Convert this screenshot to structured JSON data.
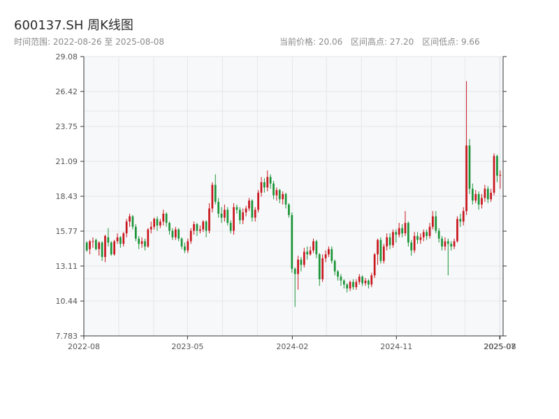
{
  "header": {
    "title": "600137.SH 周K线图",
    "range_label": "时间范围: 2022-08-26 至 2025-08-08",
    "current_price_label": "当前价格: 20.06",
    "high_label": "区间高点: 27.20",
    "low_label": "区间低点: 9.66"
  },
  "colors": {
    "up": "#c8161d",
    "down": "#1a9436",
    "grid": "#e3e6ea",
    "plot_bg": "#f7f8fa",
    "axis": "#333333"
  },
  "chart_data": {
    "type": "candlestick",
    "title": "600137.SH 周K线图",
    "xlabel": "",
    "ylabel": "",
    "ylim": [
      7.783,
      29.08
    ],
    "y_ticks": [
      7.783,
      10.44,
      13.11,
      15.77,
      18.43,
      21.09,
      23.75,
      26.42,
      29.08
    ],
    "y_tick_labels": [
      "7.783",
      "10.44",
      "13.11",
      "15.77",
      "18.43",
      "21.09",
      "23.75",
      "26.42",
      "29.08"
    ],
    "x_range": [
      "2022-08-01",
      "2025-08-09"
    ],
    "x_ticks": [
      "2022-08-01",
      "2023-05-01",
      "2024-02-01",
      "2024-11-01",
      "2025-07-31",
      "2025-08-01"
    ],
    "x_tick_labels": [
      "2022-08",
      "2023-05",
      "2024-02",
      "2024-11",
      "2025-07",
      "2025-08"
    ],
    "grid": true,
    "series_ohlc": [
      [
        14.9,
        14.3,
        15.0,
        14.2
      ],
      [
        14.4,
        15.0,
        15.1,
        14.0
      ],
      [
        15.0,
        15.0,
        15.3,
        14.5
      ],
      [
        15.1,
        14.4,
        15.2,
        14.3
      ],
      [
        14.4,
        14.9,
        15.0,
        13.9
      ],
      [
        14.9,
        13.8,
        15.0,
        13.5
      ],
      [
        13.8,
        15.4,
        15.5,
        13.4
      ],
      [
        15.3,
        14.9,
        16.0,
        14.6
      ],
      [
        14.9,
        14.0,
        15.0,
        13.9
      ],
      [
        14.0,
        15.0,
        15.1,
        13.9
      ],
      [
        15.0,
        15.3,
        15.6,
        14.8
      ],
      [
        15.3,
        14.8,
        15.4,
        14.5
      ],
      [
        14.8,
        15.6,
        15.7,
        14.6
      ],
      [
        15.6,
        16.5,
        16.7,
        15.3
      ],
      [
        16.5,
        16.9,
        17.1,
        16.1
      ],
      [
        16.9,
        16.1,
        17.0,
        15.9
      ],
      [
        16.1,
        15.2,
        16.3,
        15.0
      ],
      [
        15.2,
        14.8,
        15.4,
        14.4
      ],
      [
        14.8,
        15.0,
        15.3,
        14.5
      ],
      [
        15.0,
        14.6,
        15.2,
        14.3
      ],
      [
        14.6,
        15.9,
        16.0,
        14.5
      ],
      [
        15.9,
        16.1,
        16.5,
        15.6
      ],
      [
        16.1,
        16.7,
        16.8,
        15.9
      ],
      [
        16.7,
        16.2,
        16.9,
        15.8
      ],
      [
        16.2,
        16.5,
        16.7,
        16.0
      ],
      [
        16.5,
        17.1,
        17.4,
        16.2
      ],
      [
        17.1,
        16.4,
        17.2,
        16.1
      ],
      [
        16.4,
        15.8,
        16.5,
        15.5
      ],
      [
        15.8,
        15.3,
        16.0,
        15.1
      ],
      [
        15.3,
        15.9,
        16.1,
        15.1
      ],
      [
        15.9,
        15.2,
        16.0,
        15.0
      ],
      [
        15.2,
        14.6,
        15.3,
        14.4
      ],
      [
        14.6,
        14.3,
        14.9,
        14.1
      ],
      [
        14.3,
        15.0,
        15.2,
        14.1
      ],
      [
        15.0,
        15.8,
        16.0,
        14.8
      ],
      [
        15.8,
        16.3,
        16.5,
        15.5
      ],
      [
        16.3,
        15.8,
        16.4,
        15.4
      ],
      [
        15.8,
        15.9,
        16.2,
        15.6
      ],
      [
        15.9,
        16.5,
        16.6,
        15.7
      ],
      [
        16.5,
        15.8,
        16.6,
        15.3
      ],
      [
        15.8,
        17.5,
        17.9,
        15.6
      ],
      [
        17.5,
        19.3,
        19.5,
        17.2
      ],
      [
        19.3,
        18.0,
        20.1,
        17.8
      ],
      [
        18.0,
        17.1,
        18.3,
        16.8
      ],
      [
        17.1,
        16.8,
        17.6,
        16.4
      ],
      [
        16.8,
        17.4,
        17.8,
        16.5
      ],
      [
        17.4,
        16.4,
        17.6,
        16.2
      ],
      [
        16.4,
        15.8,
        16.6,
        15.6
      ],
      [
        15.8,
        17.6,
        17.9,
        15.5
      ],
      [
        17.6,
        17.4,
        17.8,
        17.1
      ],
      [
        17.4,
        16.6,
        17.6,
        16.3
      ],
      [
        16.6,
        17.2,
        17.5,
        16.3
      ],
      [
        17.2,
        17.5,
        17.7,
        16.9
      ],
      [
        17.5,
        18.1,
        18.3,
        17.3
      ],
      [
        18.1,
        16.8,
        18.2,
        16.5
      ],
      [
        16.8,
        17.4,
        17.6,
        16.5
      ],
      [
        17.4,
        18.7,
        18.9,
        17.2
      ],
      [
        18.7,
        19.5,
        19.9,
        18.4
      ],
      [
        19.5,
        19.1,
        19.8,
        18.7
      ],
      [
        19.1,
        19.9,
        20.4,
        18.8
      ],
      [
        19.9,
        19.4,
        20.1,
        19.0
      ],
      [
        19.4,
        18.5,
        19.6,
        18.2
      ],
      [
        18.5,
        18.9,
        19.1,
        18.1
      ],
      [
        18.9,
        18.2,
        19.0,
        17.9
      ],
      [
        18.2,
        18.6,
        18.8,
        17.8
      ],
      [
        18.6,
        17.8,
        18.7,
        17.5
      ],
      [
        17.8,
        17.0,
        17.9,
        16.8
      ],
      [
        17.0,
        12.9,
        17.2,
        12.6
      ],
      [
        12.9,
        12.5,
        13.0,
        10.0
      ],
      [
        12.5,
        13.6,
        13.9,
        11.3
      ],
      [
        13.6,
        13.2,
        13.8,
        12.7
      ],
      [
        13.2,
        14.2,
        14.5,
        13.0
      ],
      [
        14.2,
        14.0,
        14.6,
        13.6
      ],
      [
        14.0,
        14.3,
        14.6,
        13.9
      ],
      [
        14.3,
        15.0,
        15.2,
        14.1
      ],
      [
        15.0,
        14.0,
        15.1,
        13.7
      ],
      [
        14.0,
        12.1,
        14.1,
        11.6
      ],
      [
        12.1,
        13.7,
        14.0,
        11.9
      ],
      [
        13.7,
        14.0,
        14.3,
        13.4
      ],
      [
        14.0,
        14.4,
        14.6,
        13.8
      ],
      [
        14.4,
        13.5,
        14.6,
        13.3
      ],
      [
        13.5,
        12.7,
        13.6,
        12.4
      ],
      [
        12.7,
        12.3,
        12.8,
        12.0
      ],
      [
        12.3,
        12.0,
        12.5,
        11.6
      ],
      [
        12.0,
        11.7,
        12.1,
        11.4
      ],
      [
        11.7,
        11.4,
        11.8,
        11.1
      ],
      [
        11.4,
        11.9,
        12.0,
        11.2
      ],
      [
        11.9,
        11.5,
        12.1,
        11.3
      ],
      [
        11.5,
        11.9,
        12.1,
        11.3
      ],
      [
        11.9,
        12.3,
        12.5,
        11.7
      ],
      [
        12.3,
        11.8,
        12.4,
        11.6
      ],
      [
        11.8,
        12.0,
        12.2,
        11.6
      ],
      [
        12.0,
        11.7,
        12.1,
        11.4
      ],
      [
        11.7,
        12.4,
        12.6,
        11.5
      ],
      [
        12.4,
        14.0,
        14.1,
        12.2
      ],
      [
        14.0,
        15.1,
        15.2,
        13.2
      ],
      [
        15.1,
        13.5,
        15.3,
        13.3
      ],
      [
        13.5,
        14.6,
        14.8,
        13.3
      ],
      [
        14.6,
        15.3,
        15.6,
        14.3
      ],
      [
        15.3,
        14.7,
        15.6,
        14.4
      ],
      [
        14.7,
        15.7,
        15.9,
        14.5
      ],
      [
        15.7,
        15.5,
        15.9,
        14.9
      ],
      [
        15.5,
        16.0,
        16.4,
        15.3
      ],
      [
        16.0,
        15.6,
        16.3,
        15.3
      ],
      [
        15.6,
        16.4,
        17.3,
        15.4
      ],
      [
        16.4,
        14.9,
        16.5,
        14.6
      ],
      [
        14.9,
        14.3,
        15.1,
        13.9
      ],
      [
        14.3,
        15.4,
        15.7,
        14.1
      ],
      [
        15.4,
        15.1,
        15.7,
        14.8
      ],
      [
        15.1,
        15.3,
        15.6,
        14.8
      ],
      [
        15.3,
        15.7,
        15.9,
        15.0
      ],
      [
        15.7,
        15.4,
        15.9,
        15.1
      ],
      [
        15.4,
        16.1,
        16.4,
        15.2
      ],
      [
        16.1,
        16.9,
        17.3,
        15.9
      ],
      [
        16.9,
        15.8,
        17.3,
        15.6
      ],
      [
        15.8,
        15.2,
        16.0,
        14.9
      ],
      [
        15.2,
        14.6,
        15.4,
        14.3
      ],
      [
        14.6,
        15.0,
        15.3,
        14.3
      ],
      [
        15.0,
        14.8,
        15.2,
        12.4
      ],
      [
        14.8,
        14.6,
        15.0,
        14.3
      ],
      [
        14.6,
        15.0,
        15.2,
        14.4
      ],
      [
        15.0,
        16.7,
        16.9,
        14.9
      ],
      [
        16.7,
        16.5,
        17.1,
        16.1
      ],
      [
        16.5,
        17.3,
        17.6,
        16.2
      ],
      [
        17.3,
        22.3,
        27.2,
        17.0
      ],
      [
        22.3,
        19.0,
        22.8,
        18.6
      ],
      [
        19.0,
        18.1,
        19.4,
        17.8
      ],
      [
        18.1,
        18.6,
        18.9,
        17.9
      ],
      [
        18.6,
        17.8,
        18.8,
        17.4
      ],
      [
        17.8,
        18.3,
        18.6,
        17.5
      ],
      [
        18.3,
        19.0,
        19.3,
        18.0
      ],
      [
        19.0,
        18.2,
        19.2,
        17.9
      ],
      [
        18.2,
        18.7,
        19.0,
        18.0
      ],
      [
        18.7,
        21.5,
        21.7,
        18.5
      ],
      [
        21.5,
        20.0,
        21.6,
        19.5
      ],
      [
        20.0,
        20.06,
        20.4,
        19.0
      ]
    ]
  }
}
